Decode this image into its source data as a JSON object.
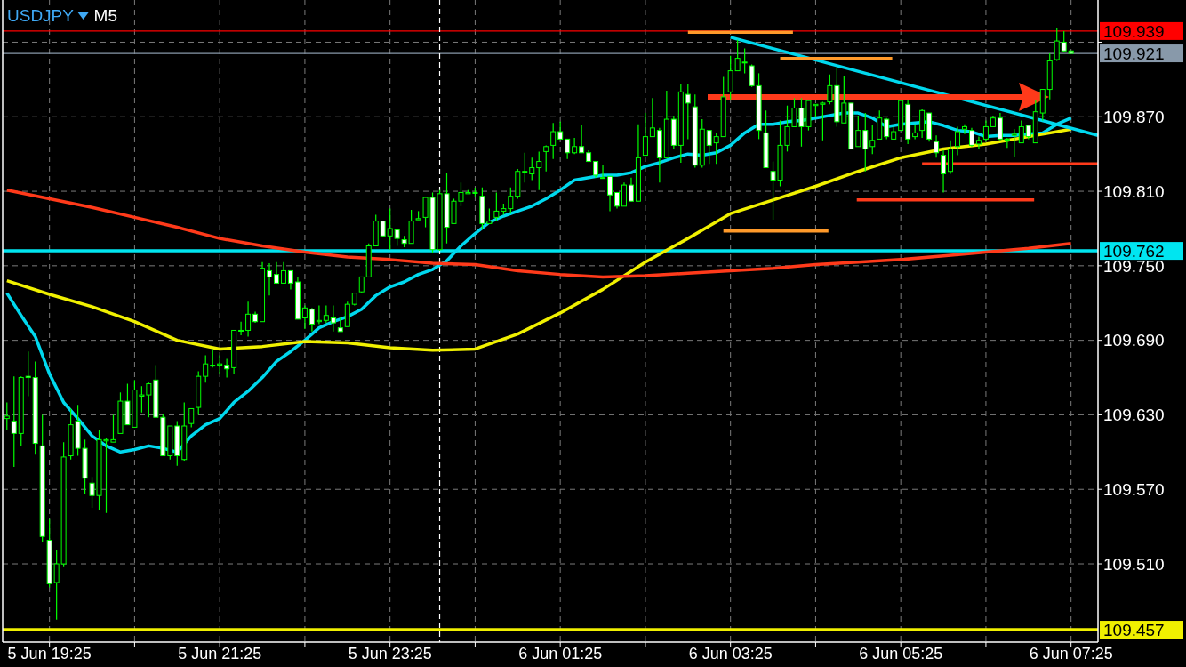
{
  "chart_data": {
    "type": "candlestick",
    "title": "USDJPY",
    "subtitle": "M5",
    "color": "#00ff00",
    "grid": true,
    "xlim": [
      "--06-05T18:52",
      "--06-06T07:44"
    ],
    "ylim": [
      109.447,
      109.964
    ],
    "xticks": [
      {
        "value": "--06-05T19:25",
        "label": "5 Jun 19:25"
      },
      {
        "value": "--06-05T20:25",
        "label": null
      },
      {
        "value": "--06-05T21:25",
        "label": "5 Jun 21:25"
      },
      {
        "value": "--06-05T22:25",
        "label": null
      },
      {
        "value": "--06-05T23:25",
        "label": "5 Jun 23:25"
      },
      {
        "value": "--06-06T00:25",
        "label": null
      },
      {
        "value": "--06-06T01:25",
        "label": "6 Jun 01:25"
      },
      {
        "value": "--06-06T02:25",
        "label": null
      },
      {
        "value": "--06-06T03:25",
        "label": "6 Jun 03:25"
      },
      {
        "value": "--06-06T04:25",
        "label": null
      },
      {
        "value": "--06-06T05:25",
        "label": "6 Jun 05:25"
      },
      {
        "value": "--06-06T06:25",
        "label": null
      },
      {
        "value": "--06-06T07:25",
        "label": "6 Jun 07:25"
      }
    ],
    "yticks": [
      {
        "value": 109.51,
        "label": "109.510"
      },
      {
        "value": 109.57,
        "label": "109.570"
      },
      {
        "value": 109.63,
        "label": "109.630"
      },
      {
        "value": 109.69,
        "label": "109.690"
      },
      {
        "value": 109.75,
        "label": "109.750"
      },
      {
        "value": 109.81,
        "label": "109.810"
      },
      {
        "value": 109.87,
        "label": "109.870"
      },
      {
        "value": 109.93,
        "label": null
      }
    ],
    "ref_lines": [
      {
        "axis": "y",
        "value": 109.939,
        "label": "109.939",
        "color": "#ff0000"
      },
      {
        "axis": "y",
        "value": 109.921,
        "label": "109.921",
        "color": "#8899aa"
      },
      {
        "axis": "y",
        "value": 109.762,
        "label": "109.762",
        "color": "#00e5f0"
      },
      {
        "axis": "y",
        "value": 109.457,
        "label": "109.457",
        "color": "#f0f000"
      },
      {
        "axis": "x",
        "value": "--06-06T00:00",
        "color": "#ffffff",
        "line_style": "dashed"
      }
    ],
    "x": [
      "--06-05T18:55",
      "--06-05T19:00",
      "--06-05T19:05",
      "--06-05T19:10",
      "--06-05T19:15",
      "--06-05T19:20",
      "--06-05T19:25",
      "--06-05T19:30",
      "--06-05T19:35",
      "--06-05T19:40",
      "--06-05T19:45",
      "--06-05T19:50",
      "--06-05T19:55",
      "--06-05T20:00",
      "--06-05T20:05",
      "--06-05T20:10",
      "--06-05T20:15",
      "--06-05T20:20",
      "--06-05T20:25",
      "--06-05T20:30",
      "--06-05T20:35",
      "--06-05T20:40",
      "--06-05T20:45",
      "--06-05T20:50",
      "--06-05T20:55",
      "--06-05T21:00",
      "--06-05T21:05",
      "--06-05T21:10",
      "--06-05T21:15",
      "--06-05T21:20",
      "--06-05T21:25",
      "--06-05T21:30",
      "--06-05T21:35",
      "--06-05T21:40",
      "--06-05T21:45",
      "--06-05T21:50",
      "--06-05T21:55",
      "--06-05T22:00",
      "--06-05T22:05",
      "--06-05T22:10",
      "--06-05T22:15",
      "--06-05T22:20",
      "--06-05T22:25",
      "--06-05T22:30",
      "--06-05T22:35",
      "--06-05T22:40",
      "--06-05T22:45",
      "--06-05T22:50",
      "--06-05T22:55",
      "--06-05T23:00",
      "--06-05T23:05",
      "--06-05T23:10",
      "--06-05T23:15",
      "--06-05T23:20",
      "--06-05T23:25",
      "--06-05T23:30",
      "--06-05T23:35",
      "--06-05T23:40",
      "--06-05T23:45",
      "--06-05T23:50",
      "--06-05T23:55",
      "--06-06T00:00",
      "--06-06T00:05",
      "--06-06T00:10",
      "--06-06T00:15",
      "--06-06T00:20",
      "--06-06T00:25",
      "--06-06T00:30",
      "--06-06T00:35",
      "--06-06T00:40",
      "--06-06T00:45",
      "--06-06T00:50",
      "--06-06T00:55",
      "--06-06T01:00",
      "--06-06T01:05",
      "--06-06T01:10",
      "--06-06T01:15",
      "--06-06T01:20",
      "--06-06T01:25",
      "--06-06T01:30",
      "--06-06T01:35",
      "--06-06T01:40",
      "--06-06T01:45",
      "--06-06T01:50",
      "--06-06T01:55",
      "--06-06T02:00",
      "--06-06T02:05",
      "--06-06T02:10",
      "--06-06T02:15",
      "--06-06T02:20",
      "--06-06T02:25",
      "--06-06T02:30",
      "--06-06T02:35",
      "--06-06T02:40",
      "--06-06T02:45",
      "--06-06T02:50",
      "--06-06T02:55",
      "--06-06T03:00",
      "--06-06T03:05",
      "--06-06T03:10",
      "--06-06T03:15",
      "--06-06T03:20",
      "--06-06T03:25",
      "--06-06T03:30",
      "--06-06T03:35",
      "--06-06T03:40",
      "--06-06T03:45",
      "--06-06T03:50",
      "--06-06T03:55",
      "--06-06T04:00",
      "--06-06T04:05",
      "--06-06T04:10",
      "--06-06T04:15",
      "--06-06T04:20",
      "--06-06T04:25",
      "--06-06T04:30",
      "--06-06T04:35",
      "--06-06T04:40",
      "--06-06T04:45",
      "--06-06T04:50",
      "--06-06T04:55",
      "--06-06T05:00",
      "--06-06T05:05",
      "--06-06T05:10",
      "--06-06T05:15",
      "--06-06T05:20",
      "--06-06T05:25",
      "--06-06T05:30",
      "--06-06T05:35",
      "--06-06T05:40",
      "--06-06T05:45",
      "--06-06T05:50",
      "--06-06T05:55",
      "--06-06T06:00",
      "--06-06T06:05",
      "--06-06T06:10",
      "--06-06T06:15",
      "--06-06T06:20",
      "--06-06T06:25",
      "--06-06T06:30",
      "--06-06T06:35",
      "--06-06T06:40",
      "--06-06T06:45",
      "--06-06T06:50",
      "--06-06T06:55",
      "--06-06T07:00",
      "--06-06T07:05",
      "--06-06T07:10",
      "--06-06T07:15",
      "--06-06T07:20",
      "--06-06T07:25"
    ],
    "ohlc": [
      [
        109.627,
        109.64,
        109.618,
        109.629
      ],
      [
        109.625,
        109.661,
        109.588,
        109.615
      ],
      [
        109.615,
        109.661,
        109.605,
        109.66
      ],
      [
        109.661,
        109.681,
        109.645,
        109.66
      ],
      [
        109.66,
        109.673,
        109.598,
        109.607
      ],
      [
        109.605,
        109.63,
        109.528,
        109.532
      ],
      [
        109.529,
        109.546,
        109.491,
        109.494
      ],
      [
        109.495,
        109.521,
        109.465,
        109.51
      ],
      [
        109.51,
        109.608,
        109.508,
        109.596
      ],
      [
        109.597,
        109.635,
        109.594,
        109.622
      ],
      [
        109.625,
        109.638,
        109.597,
        109.603
      ],
      [
        109.603,
        109.61,
        109.566,
        109.579
      ],
      [
        109.575,
        109.58,
        109.555,
        109.565
      ],
      [
        109.565,
        109.618,
        109.553,
        109.61
      ],
      [
        109.609,
        109.611,
        109.551,
        109.61
      ],
      [
        109.608,
        109.63,
        109.608,
        109.61
      ],
      [
        109.615,
        109.648,
        109.615,
        109.641
      ],
      [
        109.641,
        109.655,
        109.622,
        109.622
      ],
      [
        109.62,
        109.658,
        109.62,
        109.65
      ],
      [
        109.645,
        109.653,
        109.632,
        109.646
      ],
      [
        109.646,
        109.656,
        109.628,
        109.655
      ],
      [
        109.658,
        109.67,
        109.628,
        109.628
      ],
      [
        109.628,
        109.631,
        109.597,
        109.597
      ],
      [
        109.597,
        109.621,
        109.594,
        109.621
      ],
      [
        109.621,
        109.625,
        109.589,
        109.597
      ],
      [
        109.594,
        109.64,
        109.593,
        109.621
      ],
      [
        109.623,
        109.635,
        109.62,
        109.635
      ],
      [
        109.636,
        109.665,
        109.63,
        109.661
      ],
      [
        109.661,
        109.678,
        109.656,
        109.671
      ],
      [
        109.67,
        109.683,
        109.668,
        109.67
      ],
      [
        109.67,
        109.678,
        109.663,
        109.671
      ],
      [
        109.67,
        109.675,
        109.66,
        109.667
      ],
      [
        109.668,
        109.698,
        109.663,
        109.698
      ],
      [
        109.698,
        109.705,
        109.694,
        109.698
      ],
      [
        109.698,
        109.721,
        109.693,
        109.711
      ],
      [
        109.711,
        109.713,
        109.704,
        109.705
      ],
      [
        109.705,
        109.753,
        109.705,
        109.748
      ],
      [
        109.746,
        109.752,
        109.726,
        109.741
      ],
      [
        109.743,
        109.753,
        109.736,
        109.736
      ],
      [
        109.736,
        109.753,
        109.736,
        109.746
      ],
      [
        109.746,
        109.746,
        109.731,
        109.736
      ],
      [
        109.737,
        109.741,
        109.707,
        109.707
      ],
      [
        109.708,
        109.718,
        109.699,
        109.716
      ],
      [
        109.715,
        109.716,
        109.697,
        109.703
      ],
      [
        109.705,
        109.718,
        109.703,
        109.706
      ],
      [
        109.706,
        109.718,
        109.704,
        109.71
      ],
      [
        109.708,
        109.718,
        109.697,
        109.704
      ],
      [
        109.7,
        109.709,
        109.697,
        109.697
      ],
      [
        109.701,
        109.721,
        109.701,
        109.719
      ],
      [
        109.719,
        109.728,
        109.718,
        109.728
      ],
      [
        109.729,
        109.741,
        109.728,
        109.741
      ],
      [
        109.741,
        109.768,
        109.741,
        109.766
      ],
      [
        109.766,
        109.791,
        109.766,
        109.786
      ],
      [
        109.786,
        109.786,
        109.773,
        109.774
      ],
      [
        109.774,
        109.796,
        109.763,
        109.78
      ],
      [
        109.779,
        109.779,
        109.766,
        109.772
      ],
      [
        109.771,
        109.774,
        109.765,
        109.768
      ],
      [
        109.768,
        109.795,
        109.768,
        109.786
      ],
      [
        109.787,
        109.794,
        109.787,
        109.788
      ],
      [
        109.789,
        109.805,
        109.781,
        109.805
      ],
      [
        109.805,
        109.809,
        109.76,
        109.763
      ],
      [
        109.763,
        109.811,
        109.762,
        109.808
      ],
      [
        109.808,
        109.825,
        109.768,
        109.781
      ],
      [
        109.784,
        109.804,
        109.784,
        109.802
      ],
      [
        109.802,
        109.817,
        109.798,
        109.809
      ],
      [
        109.808,
        109.811,
        109.808,
        109.809
      ],
      [
        109.809,
        109.813,
        109.806,
        109.809
      ],
      [
        109.806,
        109.813,
        109.78,
        109.784
      ],
      [
        109.784,
        109.796,
        109.784,
        109.786
      ],
      [
        109.789,
        109.809,
        109.786,
        109.794
      ],
      [
        109.794,
        109.8,
        109.791,
        109.796
      ],
      [
        109.796,
        109.813,
        109.792,
        109.806
      ],
      [
        109.806,
        109.828,
        109.804,
        109.826
      ],
      [
        109.826,
        109.841,
        109.817,
        109.826
      ],
      [
        109.824,
        109.837,
        109.819,
        109.829
      ],
      [
        109.829,
        109.842,
        109.811,
        109.834
      ],
      [
        109.842,
        109.847,
        109.826,
        109.846
      ],
      [
        109.847,
        109.865,
        109.836,
        109.858
      ],
      [
        109.858,
        109.866,
        109.852,
        109.852
      ],
      [
        109.852,
        109.852,
        109.836,
        109.841
      ],
      [
        109.841,
        109.853,
        109.84,
        109.846
      ],
      [
        109.846,
        109.863,
        109.841,
        109.841
      ],
      [
        109.841,
        109.843,
        109.834,
        109.834
      ],
      [
        109.834,
        109.834,
        109.821,
        109.823
      ],
      [
        109.821,
        109.831,
        109.821,
        109.821
      ],
      [
        109.822,
        109.822,
        109.794,
        109.807
      ],
      [
        109.809,
        109.809,
        109.796,
        109.798
      ],
      [
        109.798,
        109.817,
        109.798,
        109.815
      ],
      [
        109.815,
        109.821,
        109.802,
        109.802
      ],
      [
        109.802,
        109.864,
        109.802,
        109.837
      ],
      [
        109.839,
        109.873,
        109.839,
        109.854
      ],
      [
        109.854,
        109.885,
        109.854,
        109.861
      ],
      [
        109.859,
        109.861,
        109.817,
        109.837
      ],
      [
        109.837,
        109.891,
        109.837,
        109.868
      ],
      [
        109.868,
        109.871,
        109.844,
        109.847
      ],
      [
        109.847,
        109.896,
        109.833,
        109.89
      ],
      [
        109.888,
        109.896,
        109.852,
        109.881
      ],
      [
        109.878,
        109.888,
        109.829,
        109.831
      ],
      [
        109.831,
        109.868,
        109.829,
        109.86
      ],
      [
        109.859,
        109.859,
        109.832,
        109.847
      ],
      [
        109.849,
        109.857,
        109.832,
        109.854
      ],
      [
        109.854,
        109.902,
        109.854,
        109.886
      ],
      [
        109.89,
        109.919,
        109.884,
        109.907
      ],
      [
        109.907,
        109.932,
        109.907,
        109.917
      ],
      [
        109.914,
        109.925,
        109.905,
        109.914
      ],
      [
        109.911,
        109.912,
        109.894,
        109.895
      ],
      [
        109.895,
        109.905,
        109.852,
        109.859
      ],
      [
        109.857,
        109.875,
        109.829,
        109.829
      ],
      [
        109.826,
        109.834,
        109.787,
        109.819
      ],
      [
        109.819,
        109.867,
        109.814,
        109.847
      ],
      [
        109.847,
        109.879,
        109.842,
        109.862
      ],
      [
        109.862,
        109.885,
        109.862,
        109.877
      ],
      [
        109.877,
        109.885,
        109.846,
        109.862
      ],
      [
        109.862,
        109.883,
        109.859,
        109.883
      ],
      [
        109.879,
        109.88,
        109.87,
        109.88
      ],
      [
        109.88,
        109.882,
        109.851,
        109.881
      ],
      [
        109.882,
        109.904,
        109.88,
        109.895
      ],
      [
        109.895,
        109.91,
        109.862,
        109.866
      ],
      [
        109.865,
        109.903,
        109.865,
        109.881
      ],
      [
        109.881,
        109.881,
        109.844,
        109.844
      ],
      [
        109.846,
        109.871,
        109.846,
        109.859
      ],
      [
        109.859,
        109.873,
        109.826,
        109.844
      ],
      [
        109.846,
        109.863,
        109.84,
        109.851
      ],
      [
        109.852,
        109.875,
        109.852,
        109.869
      ],
      [
        109.868,
        109.869,
        109.852,
        109.854
      ],
      [
        109.852,
        109.862,
        109.852,
        109.858
      ],
      [
        109.859,
        109.883,
        109.859,
        109.883
      ],
      [
        109.88,
        109.883,
        109.848,
        109.852
      ],
      [
        109.854,
        109.864,
        109.852,
        109.857
      ],
      [
        109.859,
        109.876,
        109.853,
        109.875
      ],
      [
        109.873,
        109.873,
        109.85,
        109.852
      ],
      [
        109.85,
        109.855,
        109.837,
        109.841
      ],
      [
        109.839,
        109.843,
        109.809,
        109.824
      ],
      [
        109.826,
        109.851,
        109.824,
        109.844
      ],
      [
        109.846,
        109.862,
        109.839,
        109.858
      ],
      [
        109.86,
        109.864,
        109.856,
        109.862
      ],
      [
        109.859,
        109.861,
        109.846,
        109.847
      ],
      [
        109.848,
        109.854,
        109.844,
        109.851
      ],
      [
        109.852,
        109.867,
        109.85,
        109.862
      ],
      [
        109.862,
        109.871,
        109.862,
        109.869
      ],
      [
        109.869,
        109.873,
        109.851,
        109.852
      ],
      [
        109.852,
        109.853,
        109.845,
        109.852
      ],
      [
        109.855,
        109.86,
        109.838,
        109.856
      ],
      [
        109.849,
        109.867,
        109.849,
        109.862
      ],
      [
        109.863,
        109.863,
        109.852,
        109.854
      ],
      [
        109.849,
        109.883,
        109.849,
        109.874
      ],
      [
        109.873,
        109.892,
        109.867,
        109.892
      ],
      [
        109.892,
        109.921,
        109.884,
        109.915
      ],
      [
        109.916,
        109.941,
        109.915,
        109.931
      ],
      [
        109.93,
        109.939,
        109.922,
        109.923
      ],
      [
        109.923,
        109.923,
        109.921,
        109.921
      ]
    ],
    "series": [
      {
        "type": "line",
        "color": "#00d8ee",
        "x": [
          "--06-05T18:55",
          "--06-05T19:05",
          "--06-05T19:15",
          "--06-05T19:25",
          "--06-05T19:35",
          "--06-05T19:45",
          "--06-05T19:55",
          "--06-05T20:05",
          "--06-05T20:15",
          "--06-05T20:25",
          "--06-05T20:35",
          "--06-05T20:45",
          "--06-05T20:55",
          "--06-05T21:05",
          "--06-05T21:15",
          "--06-05T21:25",
          "--06-05T21:35",
          "--06-05T21:45",
          "--06-05T21:55",
          "--06-05T22:05",
          "--06-05T22:15",
          "--06-05T22:25",
          "--06-05T22:35",
          "--06-05T22:45",
          "--06-05T22:55",
          "--06-05T23:05",
          "--06-05T23:15",
          "--06-05T23:25",
          "--06-05T23:35",
          "--06-05T23:45",
          "--06-05T23:55",
          "--06-06T00:05",
          "--06-06T00:15",
          "--06-06T00:25",
          "--06-06T00:35",
          "--06-06T00:45",
          "--06-06T00:55",
          "--06-06T01:05",
          "--06-06T01:15",
          "--06-06T01:25",
          "--06-06T01:35",
          "--06-06T01:45",
          "--06-06T01:55",
          "--06-06T02:05",
          "--06-06T02:15",
          "--06-06T02:25",
          "--06-06T02:35",
          "--06-06T02:45",
          "--06-06T02:55",
          "--06-06T03:05",
          "--06-06T03:15",
          "--06-06T03:25",
          "--06-06T03:35",
          "--06-06T03:45",
          "--06-06T03:55",
          "--06-06T04:05",
          "--06-06T04:15",
          "--06-06T04:25",
          "--06-06T04:35",
          "--06-06T04:45",
          "--06-06T04:55",
          "--06-06T05:05",
          "--06-06T05:15",
          "--06-06T05:25",
          "--06-06T05:35",
          "--06-06T05:45",
          "--06-06T05:55",
          "--06-06T06:05",
          "--06-06T06:15",
          "--06-06T06:25",
          "--06-06T06:35",
          "--06-06T06:45",
          "--06-06T06:55",
          "--06-06T07:05",
          "--06-06T07:15",
          "--06-06T07:25"
        ],
        "values": [
          109.728,
          109.71,
          109.693,
          109.663,
          109.64,
          109.627,
          109.613,
          109.605,
          109.6,
          109.602,
          109.605,
          109.603,
          109.6,
          109.613,
          109.622,
          109.627,
          109.64,
          109.649,
          109.66,
          109.673,
          109.681,
          109.69,
          109.7,
          109.705,
          109.709,
          109.715,
          109.726,
          109.733,
          109.737,
          109.743,
          109.747,
          109.754,
          109.766,
          109.776,
          109.785,
          109.79,
          109.794,
          109.798,
          109.804,
          109.811,
          109.819,
          109.821,
          109.823,
          109.823,
          109.825,
          109.83,
          109.833,
          109.837,
          109.84,
          109.839,
          109.841,
          109.847,
          109.857,
          109.864,
          109.864,
          109.866,
          109.867,
          109.869,
          109.871,
          109.873,
          109.873,
          109.869,
          109.862,
          109.864,
          109.865,
          109.866,
          109.863,
          109.859,
          109.858,
          109.854,
          109.855,
          109.855,
          109.856,
          109.857,
          109.864,
          109.869
        ]
      },
      {
        "type": "line",
        "color": "#f0f000",
        "x": [
          "--06-05T18:55",
          "--06-05T19:25",
          "--06-05T19:55",
          "--06-05T20:25",
          "--06-05T20:55",
          "--06-05T21:25",
          "--06-05T21:55",
          "--06-05T22:25",
          "--06-05T22:55",
          "--06-05T23:25",
          "--06-05T23:55",
          "--06-06T00:25",
          "--06-06T00:55",
          "--06-06T01:25",
          "--06-06T01:55",
          "--06-06T02:25",
          "--06-06T02:55",
          "--06-06T03:25",
          "--06-06T03:55",
          "--06-06T04:25",
          "--06-06T04:55",
          "--06-06T05:25",
          "--06-06T05:55",
          "--06-06T06:25",
          "--06-06T06:55",
          "--06-06T07:25"
        ],
        "values": [
          109.738,
          109.727,
          109.717,
          109.705,
          109.69,
          109.683,
          109.685,
          109.689,
          109.688,
          109.684,
          109.682,
          109.683,
          109.695,
          109.712,
          109.731,
          109.753,
          109.772,
          109.792,
          109.803,
          109.814,
          109.826,
          109.837,
          109.844,
          109.848,
          109.854,
          109.86
        ]
      },
      {
        "type": "line",
        "color": "#ff3a1a",
        "x": [
          "--06-05T18:55",
          "--06-05T19:25",
          "--06-05T19:55",
          "--06-05T20:25",
          "--06-05T20:55",
          "--06-05T21:25",
          "--06-05T21:55",
          "--06-05T22:25",
          "--06-05T22:55",
          "--06-05T23:25",
          "--06-05T23:55",
          "--06-06T00:25",
          "--06-06T00:55",
          "--06-06T01:25",
          "--06-06T01:55",
          "--06-06T02:25",
          "--06-06T02:55",
          "--06-06T03:25",
          "--06-06T03:55",
          "--06-06T04:25",
          "--06-06T04:55",
          "--06-06T05:25",
          "--06-06T05:55",
          "--06-06T06:25",
          "--06-06T06:55",
          "--06-06T07:25"
        ],
        "values": [
          109.811,
          109.804,
          109.797,
          109.789,
          109.781,
          109.772,
          109.766,
          109.761,
          109.757,
          109.755,
          109.752,
          109.751,
          109.746,
          109.743,
          109.741,
          109.742,
          109.744,
          109.746,
          109.748,
          109.751,
          109.753,
          109.755,
          109.758,
          109.761,
          109.764,
          109.768
        ]
      },
      {
        "type": "line",
        "color": "#00d8ee",
        "x": [
          "--06-06T03:25",
          "--06-06T07:44"
        ],
        "values": [
          109.934,
          109.855
        ]
      },
      {
        "type": "line",
        "color": "#ff9a2a",
        "x": [
          "--06-06T02:55",
          "--06-06T04:09"
        ],
        "values": [
          109.938,
          109.938
        ]
      },
      {
        "type": "line",
        "color": "#ff9a2a",
        "x": [
          "--06-06T04:00",
          "--06-06T05:19"
        ],
        "values": [
          109.917,
          109.917
        ]
      },
      {
        "type": "line",
        "color": "#ff3a1a",
        "x": [
          "--06-06T05:40",
          "--06-06T07:44"
        ],
        "values": [
          109.832,
          109.832
        ]
      },
      {
        "type": "line",
        "color": "#ff3a1a",
        "x": [
          "--06-06T04:54",
          "--06-06T06:59"
        ],
        "values": [
          109.803,
          109.803
        ]
      },
      {
        "type": "line",
        "color": "#ff9a2a",
        "x": [
          "--06-06T03:20",
          "--06-06T04:34"
        ],
        "values": [
          109.778,
          109.778
        ]
      }
    ]
  }
}
